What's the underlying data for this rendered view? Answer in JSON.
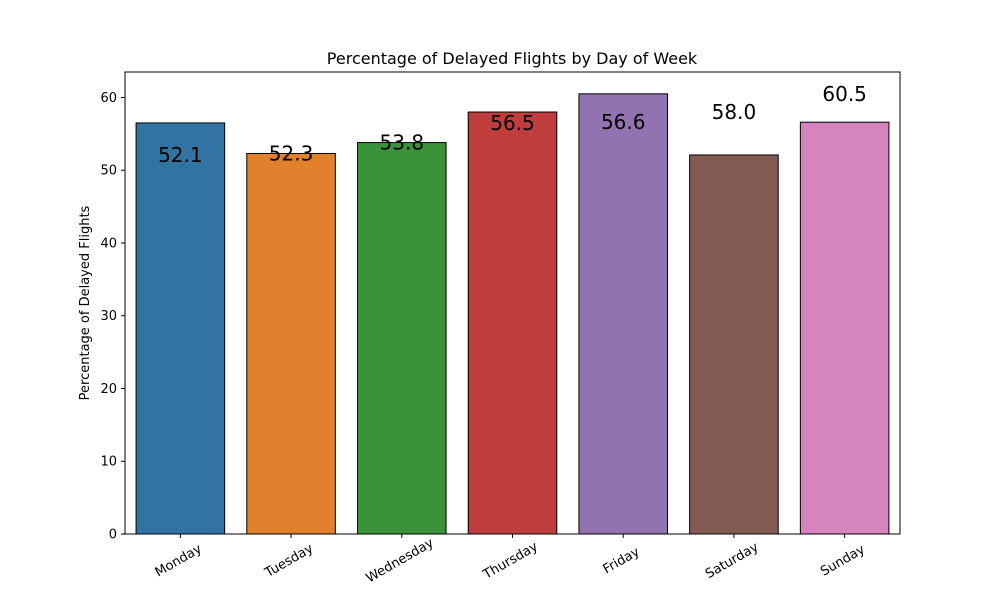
{
  "chart_data": {
    "type": "bar",
    "title": "Percentage of Delayed Flights by Day of Week",
    "xlabel": "",
    "ylabel": "Percentage of Delayed Flights",
    "categories": [
      "Monday",
      "Tuesday",
      "Wednesday",
      "Thursday",
      "Friday",
      "Saturday",
      "Sunday"
    ],
    "values": [
      56.5,
      52.3,
      53.8,
      58.0,
      60.5,
      52.1,
      56.6
    ],
    "data_labels": [
      "52.1",
      "52.3",
      "53.8",
      "56.5",
      "56.6",
      "58.0",
      "60.5"
    ],
    "data_label_values": [
      52.1,
      52.3,
      53.8,
      56.5,
      56.6,
      58.0,
      60.5
    ],
    "colors": [
      "#3274a1",
      "#e1812c",
      "#3a923a",
      "#c03d3e",
      "#9372b2",
      "#845b53",
      "#d684bd"
    ],
    "yticks": [
      0,
      10,
      20,
      30,
      40,
      50,
      60
    ],
    "ylim": [
      0,
      63.5
    ],
    "grid": false,
    "legend": "none"
  }
}
